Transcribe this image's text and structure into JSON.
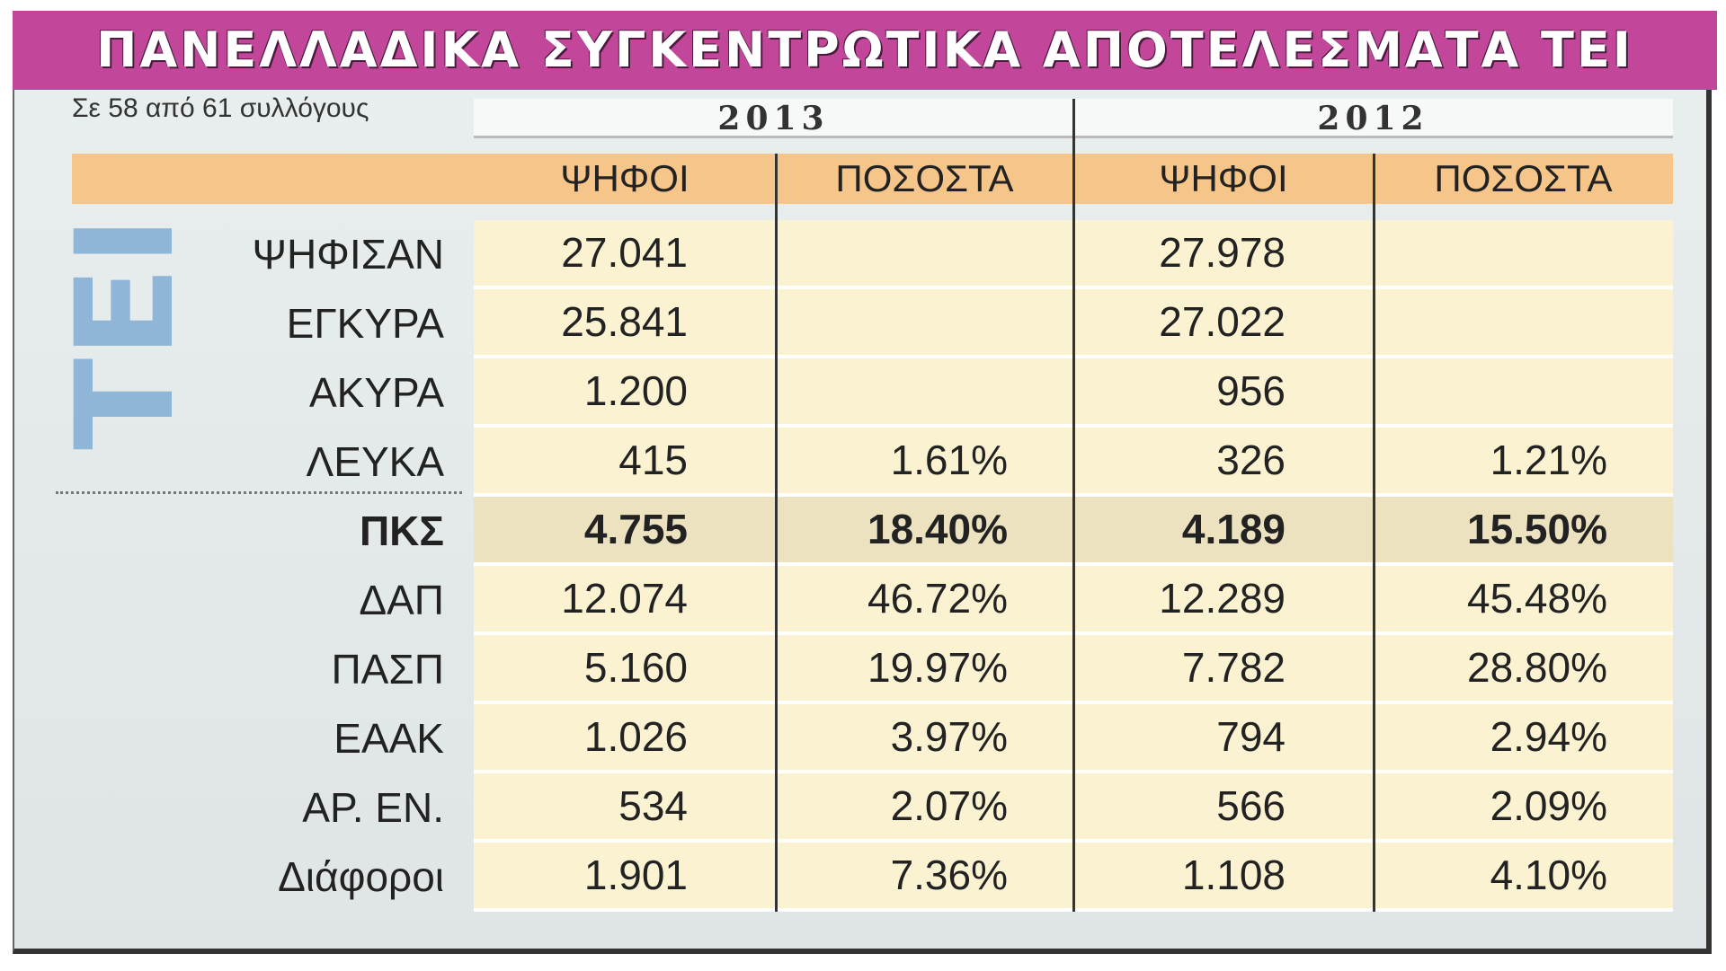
{
  "title": "ΠΑΝΕΛΛΑΔΙΚΑ ΣΥΓΚΕΝΤΡΩΤΙΚΑ ΑΠΟΤΕΛΕΣΜΑΤΑ ΤΕΙ",
  "subtitle": "Σε 58 από 61 συλλόγους",
  "side_label": "ΤΕΙ",
  "table": {
    "years": [
      "2013",
      "2012"
    ],
    "columns": [
      "ΨΗΦΟΙ",
      "ΠΟΣΟΣΤΑ",
      "ΨΗΦΟΙ",
      "ΠΟΣΟΣΤΑ"
    ],
    "rows": [
      [
        "ΨΗΦΙΣΑΝ",
        "27.041",
        null,
        "27.978",
        null
      ],
      [
        "ΕΓΚΥΡΑ",
        "25.841",
        null,
        "27.022",
        null
      ],
      [
        "ΑΚΥΡΑ",
        "1.200",
        null,
        "956",
        null
      ],
      [
        "ΛΕΥΚΑ",
        "415",
        "1.61%",
        "326",
        "1.21%"
      ],
      [
        "ΠΚΣ",
        "4.755",
        "18.40%",
        "4.189",
        "15.50%"
      ],
      [
        "ΔΑΠ",
        "12.074",
        "46.72%",
        "12.289",
        "45.48%"
      ],
      [
        "ΠΑΣΠ",
        "5.160",
        "19.97%",
        "7.782",
        "28.80%"
      ],
      [
        "ΕΑΑΚ",
        "1.026",
        "3.97%",
        "794",
        "2.94%"
      ],
      [
        "ΑΡ. ΕΝ.",
        "534",
        "2.07%",
        "566",
        "2.09%"
      ],
      [
        "Διάφοροι",
        "1.901",
        "7.36%",
        "1.108",
        "4.10%"
      ]
    ]
  }
}
